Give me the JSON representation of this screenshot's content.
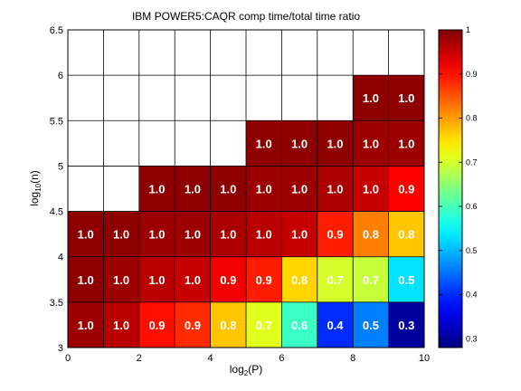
{
  "chart_data": {
    "type": "heatmap",
    "title": "IBM POWER5:CAQR comp time/total time ratio",
    "xlabel": {
      "base": "log",
      "sub": "2",
      "rest": "(P)"
    },
    "ylabel": {
      "base": "log",
      "sub": "10",
      "rest": "(n)"
    },
    "xlim": [
      0,
      10
    ],
    "ylim": [
      3,
      6.5
    ],
    "x_ticks": [
      0,
      2,
      4,
      6,
      8,
      10
    ],
    "y_ticks": [
      3,
      3.5,
      4,
      4.5,
      5,
      5.5,
      6,
      6.5
    ],
    "x_tick_labels": [
      "0",
      "2",
      "4",
      "6",
      "8",
      "10"
    ],
    "y_tick_labels": [
      "3",
      "3.5",
      "4",
      "4.5",
      "5",
      "5.5",
      "6",
      "6.5"
    ],
    "colormap": "jet",
    "clim": [
      0.28,
      1.0
    ],
    "colorbar_ticks": [
      0.3,
      0.4,
      0.5,
      0.6,
      0.7,
      0.8,
      0.9,
      1
    ],
    "colorbar_tick_labels": [
      "0.3",
      "0.4",
      "0.5",
      "0.6",
      "0.7",
      "0.8",
      "0.9",
      "1"
    ],
    "cells": [
      {
        "x": 0,
        "y": 3.0,
        "value": 0.98,
        "label": "1.0"
      },
      {
        "x": 1,
        "y": 3.0,
        "value": 0.96,
        "label": "1.0"
      },
      {
        "x": 2,
        "y": 3.0,
        "value": 0.9,
        "label": "0.9"
      },
      {
        "x": 3,
        "y": 3.0,
        "value": 0.88,
        "label": "0.9"
      },
      {
        "x": 4,
        "y": 3.0,
        "value": 0.77,
        "label": "0.8"
      },
      {
        "x": 5,
        "y": 3.0,
        "value": 0.71,
        "label": "0.7"
      },
      {
        "x": 6,
        "y": 3.0,
        "value": 0.59,
        "label": "0.6"
      },
      {
        "x": 7,
        "y": 3.0,
        "value": 0.4,
        "label": "0.4"
      },
      {
        "x": 8,
        "y": 3.0,
        "value": 0.46,
        "label": "0.5"
      },
      {
        "x": 9,
        "y": 3.0,
        "value": 0.3,
        "label": "0.3"
      },
      {
        "x": 0,
        "y": 3.5,
        "value": 0.99,
        "label": "1.0"
      },
      {
        "x": 1,
        "y": 3.5,
        "value": 0.98,
        "label": "1.0"
      },
      {
        "x": 2,
        "y": 3.5,
        "value": 0.96,
        "label": "1.0"
      },
      {
        "x": 3,
        "y": 3.5,
        "value": 0.95,
        "label": "1.0"
      },
      {
        "x": 4,
        "y": 3.5,
        "value": 0.92,
        "label": "0.9"
      },
      {
        "x": 5,
        "y": 3.5,
        "value": 0.89,
        "label": "0.9"
      },
      {
        "x": 6,
        "y": 3.5,
        "value": 0.76,
        "label": "0.8"
      },
      {
        "x": 7,
        "y": 3.5,
        "value": 0.7,
        "label": "0.7"
      },
      {
        "x": 8,
        "y": 3.5,
        "value": 0.69,
        "label": "0.7"
      },
      {
        "x": 9,
        "y": 3.5,
        "value": 0.53,
        "label": "0.5"
      },
      {
        "x": 0,
        "y": 4.0,
        "value": 0.99,
        "label": "1.0"
      },
      {
        "x": 1,
        "y": 4.0,
        "value": 0.99,
        "label": "1.0"
      },
      {
        "x": 2,
        "y": 4.0,
        "value": 0.98,
        "label": "1.0"
      },
      {
        "x": 3,
        "y": 4.0,
        "value": 0.98,
        "label": "1.0"
      },
      {
        "x": 4,
        "y": 4.0,
        "value": 0.97,
        "label": "1.0"
      },
      {
        "x": 5,
        "y": 4.0,
        "value": 0.96,
        "label": "1.0"
      },
      {
        "x": 6,
        "y": 4.0,
        "value": 0.95,
        "label": "1.0"
      },
      {
        "x": 7,
        "y": 4.0,
        "value": 0.89,
        "label": "0.9"
      },
      {
        "x": 8,
        "y": 4.0,
        "value": 0.82,
        "label": "0.8"
      },
      {
        "x": 9,
        "y": 4.0,
        "value": 0.77,
        "label": "0.8"
      },
      {
        "x": 2,
        "y": 4.5,
        "value": 0.99,
        "label": "1.0"
      },
      {
        "x": 3,
        "y": 4.5,
        "value": 0.99,
        "label": "1.0"
      },
      {
        "x": 4,
        "y": 4.5,
        "value": 0.99,
        "label": "1.0"
      },
      {
        "x": 5,
        "y": 4.5,
        "value": 0.98,
        "label": "1.0"
      },
      {
        "x": 6,
        "y": 4.5,
        "value": 0.98,
        "label": "1.0"
      },
      {
        "x": 7,
        "y": 4.5,
        "value": 0.97,
        "label": "1.0"
      },
      {
        "x": 8,
        "y": 4.5,
        "value": 0.95,
        "label": "1.0"
      },
      {
        "x": 9,
        "y": 4.5,
        "value": 0.91,
        "label": "0.9"
      },
      {
        "x": 5,
        "y": 5.0,
        "value": 0.99,
        "label": "1.0"
      },
      {
        "x": 6,
        "y": 5.0,
        "value": 0.99,
        "label": "1.0"
      },
      {
        "x": 7,
        "y": 5.0,
        "value": 0.99,
        "label": "1.0"
      },
      {
        "x": 8,
        "y": 5.0,
        "value": 0.98,
        "label": "1.0"
      },
      {
        "x": 9,
        "y": 5.0,
        "value": 0.98,
        "label": "1.0"
      },
      {
        "x": 8,
        "y": 5.5,
        "value": 0.99,
        "label": "1.0"
      },
      {
        "x": 9,
        "y": 5.5,
        "value": 0.99,
        "label": "1.0"
      }
    ]
  }
}
